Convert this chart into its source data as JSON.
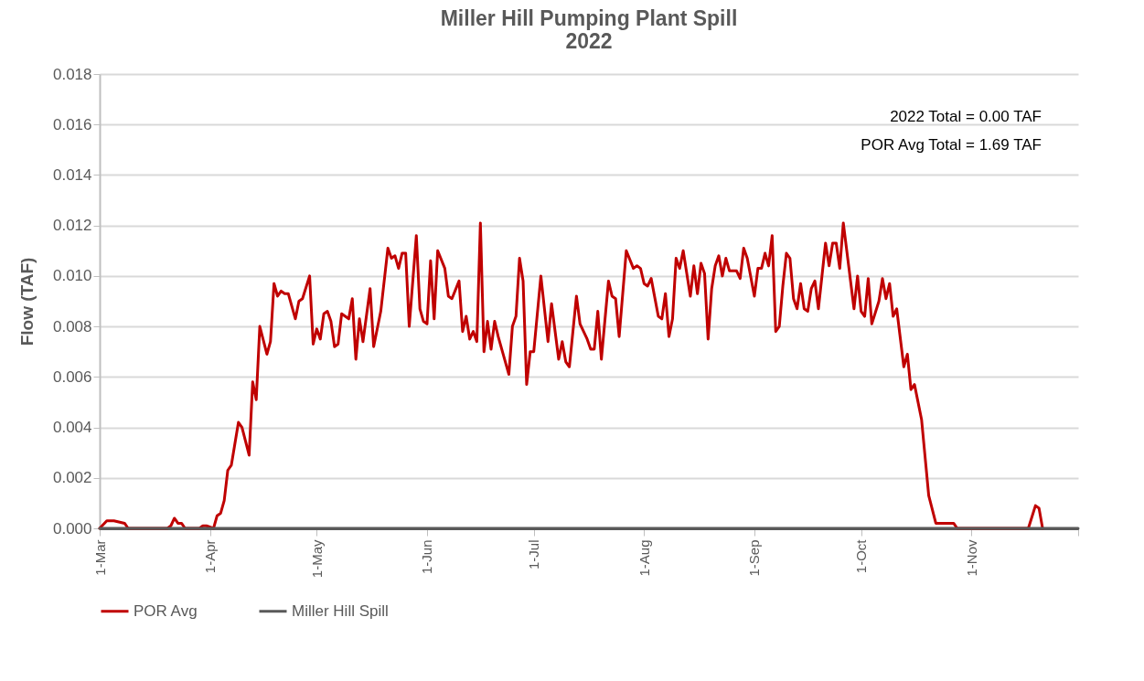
{
  "chart_data": {
    "type": "line",
    "title": "Miller Hill Pumping Plant Spill",
    "subtitle": "2022",
    "ylabel": "Flow (TAF)",
    "annotations": [
      "2022 Total = 0.00 TAF",
      "POR Avg Total = 1.69 TAF"
    ],
    "xlim": [
      "2022-03-01",
      "2022-12-01"
    ],
    "xticks": [
      {
        "value": "2022-03-01",
        "label": "1-Mar"
      },
      {
        "value": "2022-04-01",
        "label": "1-Apr"
      },
      {
        "value": "2022-05-01",
        "label": "1-May"
      },
      {
        "value": "2022-06-01",
        "label": "1-Jun"
      },
      {
        "value": "2022-07-01",
        "label": "1-Jul"
      },
      {
        "value": "2022-08-01",
        "label": "1-Aug"
      },
      {
        "value": "2022-09-01",
        "label": "1-Sep"
      },
      {
        "value": "2022-10-01",
        "label": "1-Oct"
      },
      {
        "value": "2022-11-01",
        "label": "1-Nov"
      },
      {
        "value": "2022-12-01",
        "label": null
      }
    ],
    "ylim": [
      0,
      0.018
    ],
    "yticks": [
      {
        "value": 0,
        "label": "0.000"
      },
      {
        "value": 0.002,
        "label": "0.002"
      },
      {
        "value": 0.004,
        "label": "0.004"
      },
      {
        "value": 0.006,
        "label": "0.006"
      },
      {
        "value": 0.008,
        "label": "0.008"
      },
      {
        "value": 0.01,
        "label": "0.010"
      },
      {
        "value": 0.012,
        "label": "0.012"
      },
      {
        "value": 0.014,
        "label": "0.014"
      },
      {
        "value": 0.016,
        "label": "0.016"
      },
      {
        "value": 0.018,
        "label": "0.018"
      }
    ],
    "grid": "y",
    "legend": "bottom",
    "marker": "none",
    "line_style": "solid",
    "series": [
      {
        "name": "POR Avg",
        "color": "#c00000",
        "x": [
          "2022-03-01",
          "2022-03-03",
          "2022-03-05",
          "2022-03-08",
          "2022-03-09",
          "2022-03-20",
          "2022-03-21",
          "2022-03-22",
          "2022-03-23",
          "2022-03-24",
          "2022-03-25",
          "2022-03-29",
          "2022-03-30",
          "2022-03-31",
          "2022-04-02",
          "2022-04-03",
          "2022-04-04",
          "2022-04-05",
          "2022-04-06",
          "2022-04-07",
          "2022-04-09",
          "2022-04-10",
          "2022-04-12",
          "2022-04-13",
          "2022-04-14",
          "2022-04-15",
          "2022-04-17",
          "2022-04-18",
          "2022-04-19",
          "2022-04-20",
          "2022-04-21",
          "2022-04-22",
          "2022-04-23",
          "2022-04-25",
          "2022-04-26",
          "2022-04-27",
          "2022-04-29",
          "2022-04-30",
          "2022-05-01",
          "2022-05-02",
          "2022-05-03",
          "2022-05-04",
          "2022-05-05",
          "2022-05-06",
          "2022-05-07",
          "2022-05-08",
          "2022-05-10",
          "2022-05-11",
          "2022-05-12",
          "2022-05-13",
          "2022-05-14",
          "2022-05-16",
          "2022-05-17",
          "2022-05-19",
          "2022-05-21",
          "2022-05-22",
          "2022-05-23",
          "2022-05-24",
          "2022-05-25",
          "2022-05-26",
          "2022-05-27",
          "2022-05-29",
          "2022-05-30",
          "2022-05-31",
          "2022-06-01",
          "2022-06-02",
          "2022-06-03",
          "2022-06-04",
          "2022-06-06",
          "2022-06-07",
          "2022-06-08",
          "2022-06-10",
          "2022-06-11",
          "2022-06-12",
          "2022-06-13",
          "2022-06-14",
          "2022-06-15",
          "2022-06-16",
          "2022-06-17",
          "2022-06-18",
          "2022-06-19",
          "2022-06-20",
          "2022-06-21",
          "2022-06-24",
          "2022-06-25",
          "2022-06-26",
          "2022-06-27",
          "2022-06-28",
          "2022-06-29",
          "2022-06-30",
          "2022-07-01",
          "2022-07-03",
          "2022-07-05",
          "2022-07-06",
          "2022-07-08",
          "2022-07-09",
          "2022-07-10",
          "2022-07-11",
          "2022-07-13",
          "2022-07-14",
          "2022-07-16",
          "2022-07-17",
          "2022-07-18",
          "2022-07-19",
          "2022-07-20",
          "2022-07-22",
          "2022-07-23",
          "2022-07-24",
          "2022-07-25",
          "2022-07-27",
          "2022-07-29",
          "2022-07-30",
          "2022-07-31",
          "2022-08-01",
          "2022-08-02",
          "2022-08-03",
          "2022-08-05",
          "2022-08-06",
          "2022-08-07",
          "2022-08-08",
          "2022-08-09",
          "2022-08-10",
          "2022-08-11",
          "2022-08-12",
          "2022-08-14",
          "2022-08-15",
          "2022-08-16",
          "2022-08-17",
          "2022-08-18",
          "2022-08-19",
          "2022-08-20",
          "2022-08-21",
          "2022-08-22",
          "2022-08-23",
          "2022-08-24",
          "2022-08-25",
          "2022-08-27",
          "2022-08-28",
          "2022-08-29",
          "2022-08-30",
          "2022-09-01",
          "2022-09-02",
          "2022-09-03",
          "2022-09-04",
          "2022-09-05",
          "2022-09-06",
          "2022-09-07",
          "2022-09-08",
          "2022-09-09",
          "2022-09-10",
          "2022-09-11",
          "2022-09-12",
          "2022-09-13",
          "2022-09-14",
          "2022-09-15",
          "2022-09-16",
          "2022-09-17",
          "2022-09-18",
          "2022-09-19",
          "2022-09-21",
          "2022-09-22",
          "2022-09-23",
          "2022-09-24",
          "2022-09-25",
          "2022-09-26",
          "2022-09-29",
          "2022-09-30",
          "2022-10-01",
          "2022-10-02",
          "2022-10-03",
          "2022-10-04",
          "2022-10-06",
          "2022-10-07",
          "2022-10-08",
          "2022-10-09",
          "2022-10-10",
          "2022-10-11",
          "2022-10-13",
          "2022-10-14",
          "2022-10-15",
          "2022-10-16",
          "2022-10-18",
          "2022-10-20",
          "2022-10-22",
          "2022-10-27",
          "2022-10-28",
          "2022-11-17",
          "2022-11-19",
          "2022-11-20",
          "2022-11-21"
        ],
        "values": [
          0,
          0.0003,
          0.0003,
          0.0002,
          0,
          0,
          0.0001,
          0.0004,
          0.0002,
          0.0002,
          0,
          0,
          0.0001,
          0.0001,
          0,
          0.0005,
          0.0006,
          0.0011,
          0.0023,
          0.0025,
          0.0042,
          0.004,
          0.0029,
          0.0058,
          0.0051,
          0.008,
          0.0069,
          0.0074,
          0.0097,
          0.0092,
          0.0094,
          0.0093,
          0.0093,
          0.0083,
          0.009,
          0.0091,
          0.01,
          0.0073,
          0.0079,
          0.0075,
          0.0085,
          0.0086,
          0.0082,
          0.0072,
          0.0073,
          0.0085,
          0.0083,
          0.0091,
          0.0067,
          0.0083,
          0.0074,
          0.0095,
          0.0072,
          0.0086,
          0.0111,
          0.0107,
          0.0108,
          0.0103,
          0.0109,
          0.0109,
          0.008,
          0.0116,
          0.0087,
          0.0082,
          0.0081,
          0.0106,
          0.0083,
          0.011,
          0.0103,
          0.0092,
          0.0091,
          0.0098,
          0.0078,
          0.0084,
          0.0075,
          0.0078,
          0.0074,
          0.0121,
          0.007,
          0.0082,
          0.0071,
          0.0082,
          0.0076,
          0.0061,
          0.008,
          0.0084,
          0.0107,
          0.0098,
          0.0057,
          0.007,
          0.007,
          0.01,
          0.0074,
          0.0089,
          0.0067,
          0.0074,
          0.0066,
          0.0064,
          0.0092,
          0.0081,
          0.0075,
          0.0071,
          0.0071,
          0.0086,
          0.0067,
          0.0098,
          0.0092,
          0.0091,
          0.0076,
          0.011,
          0.0103,
          0.0104,
          0.0103,
          0.0097,
          0.0096,
          0.0099,
          0.0084,
          0.0083,
          0.0093,
          0.0076,
          0.0083,
          0.0107,
          0.0103,
          0.011,
          0.0092,
          0.0104,
          0.0093,
          0.0105,
          0.0101,
          0.0075,
          0.0095,
          0.0104,
          0.0108,
          0.01,
          0.0107,
          0.0102,
          0.0102,
          0.0099,
          0.0111,
          0.0107,
          0.0092,
          0.0103,
          0.0103,
          0.0109,
          0.0104,
          0.0116,
          0.0078,
          0.008,
          0.0096,
          0.0109,
          0.0107,
          0.0091,
          0.0087,
          0.0097,
          0.0087,
          0.0086,
          0.0095,
          0.0098,
          0.0087,
          0.0113,
          0.0104,
          0.0113,
          0.0113,
          0.0103,
          0.0121,
          0.0087,
          0.01,
          0.0086,
          0.0084,
          0.0099,
          0.0081,
          0.009,
          0.0099,
          0.0091,
          0.0097,
          0.0084,
          0.0087,
          0.0064,
          0.0069,
          0.0055,
          0.0057,
          0.0043,
          0.0013,
          0.0002,
          0.0002,
          0,
          0,
          0.0009,
          0.0008,
          0
        ]
      },
      {
        "name": "Miller Hill Spill",
        "color": "#595959",
        "x": [
          "2022-03-01",
          "2022-12-01"
        ],
        "values": [
          0,
          0
        ]
      }
    ]
  }
}
